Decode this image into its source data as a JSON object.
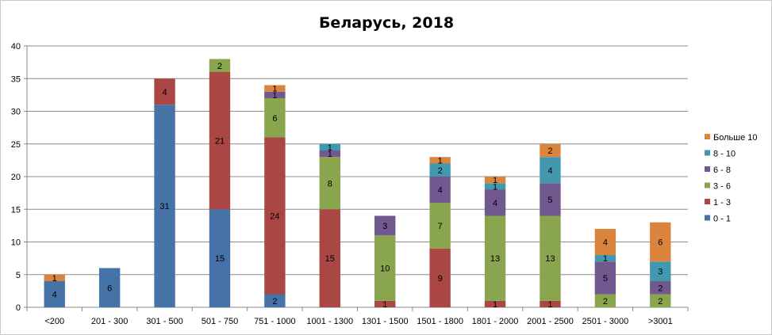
{
  "chart_data": {
    "type": "bar",
    "stacked": true,
    "title": "Беларусь, 2018",
    "xlabel": "",
    "ylabel": "",
    "ylim": [
      0,
      40
    ],
    "yticks": [
      0,
      5,
      10,
      15,
      20,
      25,
      30,
      35,
      40
    ],
    "grid": true,
    "legend_position": "right",
    "categories": [
      "<200",
      "201 - 300",
      "301 - 500",
      "501 - 750",
      "751 - 1000",
      "1001 - 1300",
      "1301 - 1500",
      "1501 - 1800",
      "1801 - 2000",
      "2001 - 2500",
      "2501 - 3000",
      ">3001"
    ],
    "series": [
      {
        "name": "0 - 1",
        "color": "#4572a7",
        "values": [
          4,
          6,
          31,
          15,
          2,
          0,
          0,
          0,
          0,
          0,
          0,
          0
        ]
      },
      {
        "name": "1 - 3",
        "color": "#aa4643",
        "values": [
          0,
          0,
          4,
          21,
          24,
          15,
          1,
          9,
          1,
          1,
          0,
          0
        ]
      },
      {
        "name": "3 - 6",
        "color": "#89a54e",
        "values": [
          0,
          0,
          0,
          2,
          6,
          8,
          10,
          7,
          13,
          13,
          2,
          2
        ]
      },
      {
        "name": "6 - 8",
        "color": "#71588f",
        "values": [
          0,
          0,
          0,
          0,
          1,
          1,
          3,
          4,
          4,
          5,
          5,
          2
        ]
      },
      {
        "name": "8 - 10",
        "color": "#4198af",
        "values": [
          0,
          0,
          0,
          0,
          0,
          1,
          0,
          2,
          1,
          4,
          1,
          3
        ]
      },
      {
        "name": "Больше 10",
        "color": "#db843d",
        "values": [
          1,
          0,
          0,
          0,
          1,
          0,
          0,
          1,
          1,
          2,
          4,
          6
        ]
      }
    ]
  }
}
